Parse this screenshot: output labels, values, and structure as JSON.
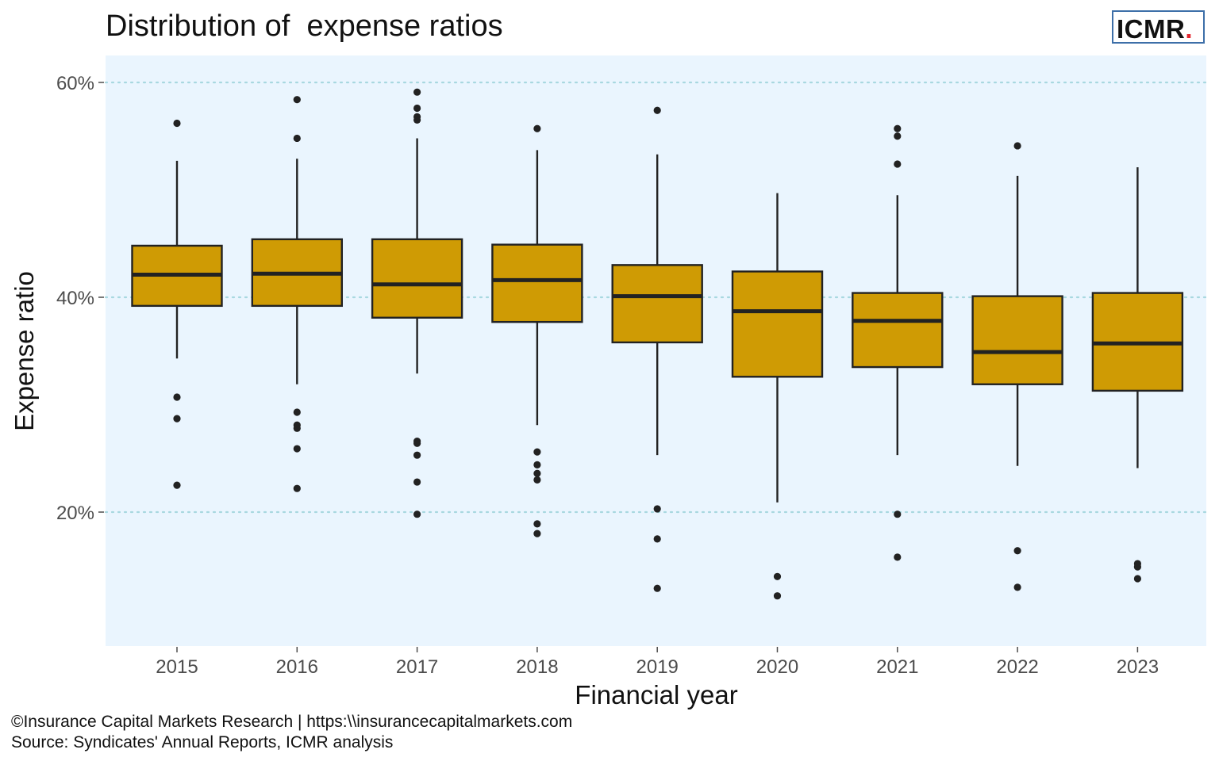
{
  "chart_data": {
    "type": "box",
    "title": "Distribution of  expense ratios",
    "xlabel": "Financial year",
    "ylabel": "Expense ratio",
    "ylim": [
      0.08,
      0.625
    ],
    "yticks": [
      0.2,
      0.4,
      0.6
    ],
    "ytick_labels": [
      "20%",
      "40%",
      "60%"
    ],
    "grid": "horizontal dotted at major ticks",
    "box_color": "#CF9B04",
    "box_edge_color": "#222222",
    "panel_background": "#EAF5FE",
    "gridline_color": "#A8D8E0",
    "categories": [
      "2015",
      "2016",
      "2017",
      "2018",
      "2019",
      "2020",
      "2021",
      "2022",
      "2023"
    ],
    "boxes": [
      {
        "year": "2015",
        "whisker_low": 0.343,
        "q1": 0.392,
        "median": 0.421,
        "q3": 0.448,
        "whisker_high": 0.527,
        "outliers": [
          0.562,
          0.307,
          0.287,
          0.225
        ]
      },
      {
        "year": "2016",
        "whisker_low": 0.319,
        "q1": 0.392,
        "median": 0.422,
        "q3": 0.454,
        "whisker_high": 0.529,
        "outliers": [
          0.584,
          0.548,
          0.293,
          0.281,
          0.278,
          0.259,
          0.222
        ]
      },
      {
        "year": "2017",
        "whisker_low": 0.329,
        "q1": 0.381,
        "median": 0.412,
        "q3": 0.454,
        "whisker_high": 0.548,
        "outliers": [
          0.591,
          0.576,
          0.568,
          0.565,
          0.266,
          0.264,
          0.253,
          0.228,
          0.198
        ]
      },
      {
        "year": "2018",
        "whisker_low": 0.281,
        "q1": 0.377,
        "median": 0.416,
        "q3": 0.449,
        "whisker_high": 0.537,
        "outliers": [
          0.557,
          0.256,
          0.244,
          0.236,
          0.23,
          0.189,
          0.18
        ]
      },
      {
        "year": "2019",
        "whisker_low": 0.253,
        "q1": 0.358,
        "median": 0.401,
        "q3": 0.43,
        "whisker_high": 0.533,
        "outliers": [
          0.574,
          0.203,
          0.175,
          0.129
        ]
      },
      {
        "year": "2020",
        "whisker_low": 0.209,
        "q1": 0.326,
        "median": 0.387,
        "q3": 0.424,
        "whisker_high": 0.497,
        "outliers": [
          0.14,
          0.122
        ]
      },
      {
        "year": "2021",
        "whisker_low": 0.253,
        "q1": 0.335,
        "median": 0.378,
        "q3": 0.404,
        "whisker_high": 0.495,
        "outliers": [
          0.557,
          0.55,
          0.524,
          0.198,
          0.158
        ]
      },
      {
        "year": "2022",
        "whisker_low": 0.243,
        "q1": 0.319,
        "median": 0.349,
        "q3": 0.401,
        "whisker_high": 0.513,
        "outliers": [
          0.541,
          0.164,
          0.13
        ]
      },
      {
        "year": "2023",
        "whisker_low": 0.241,
        "q1": 0.313,
        "median": 0.357,
        "q3": 0.404,
        "whisker_high": 0.521,
        "outliers": [
          0.152,
          0.149,
          0.138
        ]
      }
    ]
  },
  "logo": {
    "text": "ICMR",
    "dot": ".",
    "dot_color": "#E3262F",
    "border_color": "#3D6FA8"
  },
  "caption": {
    "line1": "©Insurance Capital Markets Research | https:\\\\insurancecapitalmarkets.com",
    "line2": "Source: Syndicates' Annual Reports, ICMR analysis"
  }
}
